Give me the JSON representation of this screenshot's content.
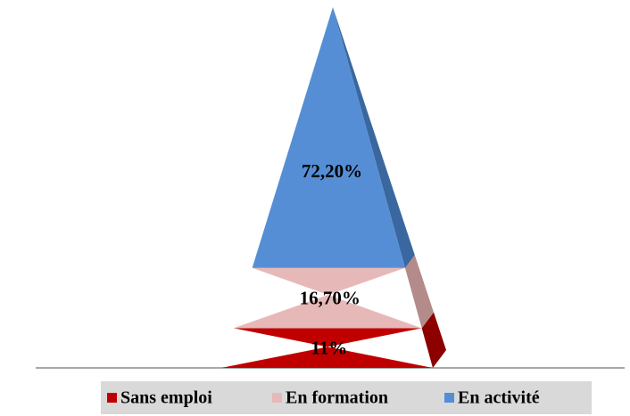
{
  "chart_data": {
    "type": "pyramid",
    "series": [
      {
        "name": "Sans emploi",
        "color": "#c00000",
        "side_color": "#8c0000",
        "values": [
          11
        ],
        "value_labels": [
          "11%"
        ]
      },
      {
        "name": "En formation",
        "color": "#e6b9b8",
        "side_color": "#b38b8a",
        "values": [
          16.7
        ],
        "value_labels": [
          "16,70%"
        ]
      },
      {
        "name": "En activité",
        "color": "#558ed5",
        "side_color": "#3a679f",
        "values": [
          72.2
        ],
        "value_labels": [
          "72,20%"
        ]
      }
    ],
    "legend": "bottom"
  }
}
